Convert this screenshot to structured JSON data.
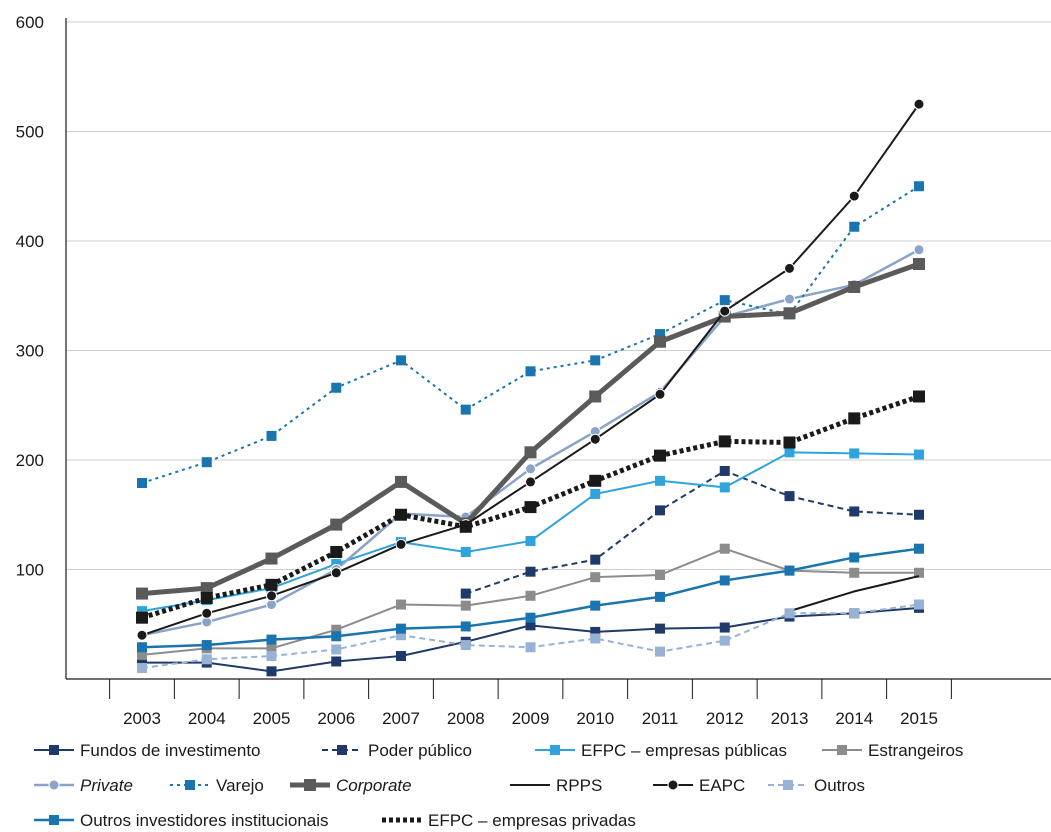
{
  "chart_data": {
    "type": "line",
    "x": [
      "2003",
      "2004",
      "2005",
      "2006",
      "2007",
      "2008",
      "2009",
      "2010",
      "2011",
      "2012",
      "2013",
      "2014",
      "2015"
    ],
    "ylim": [
      0,
      600
    ],
    "yticks": [
      100,
      200,
      300,
      400,
      500,
      600
    ],
    "grid": true,
    "legend_position": "bottom",
    "series": [
      {
        "name": "Fundos de investimento",
        "color": "#1f3a68",
        "line": "solid",
        "marker": "square",
        "width": 2,
        "italic": false,
        "values": [
          15,
          15,
          7,
          16,
          21,
          34,
          49,
          43,
          46,
          47,
          57,
          60,
          65
        ]
      },
      {
        "name": "Poder público",
        "color": "#1f3a68",
        "line": "dashed",
        "marker": "square",
        "width": 2,
        "italic": false,
        "values": [
          null,
          null,
          null,
          null,
          null,
          78,
          98,
          109,
          154,
          190,
          167,
          153,
          150
        ]
      },
      {
        "name": "EFPC  – empresas públicas",
        "color": "#2ea3dc",
        "line": "solid",
        "marker": "square",
        "width": 2,
        "italic": false,
        "values": [
          62,
          72,
          83,
          105,
          125,
          116,
          126,
          169,
          181,
          175,
          207,
          206,
          205
        ]
      },
      {
        "name": "Estrangeiros",
        "color": "#8c8c8c",
        "line": "solid",
        "marker": "square",
        "width": 2,
        "italic": false,
        "values": [
          22,
          28,
          28,
          45,
          68,
          67,
          76,
          93,
          95,
          119,
          99,
          97,
          97
        ]
      },
      {
        "name": "Private",
        "color": "#8aa3c9",
        "line": "solid",
        "marker": "circle",
        "width": 2.5,
        "italic": true,
        "values": [
          40,
          52,
          68,
          100,
          151,
          148,
          192,
          226,
          262,
          331,
          347,
          360,
          392
        ]
      },
      {
        "name": "Varejo",
        "color": "#1a74b0",
        "line": "dotted",
        "marker": "square",
        "width": 2,
        "italic": false,
        "values": [
          179,
          198,
          222,
          266,
          291,
          246,
          281,
          291,
          315,
          346,
          333,
          413,
          450
        ]
      },
      {
        "name": "Corporate",
        "color": "#5a5a5a",
        "line": "solid",
        "marker": "square",
        "width": 5,
        "italic": true,
        "values": [
          78,
          83,
          110,
          141,
          180,
          142,
          207,
          258,
          308,
          331,
          334,
          358,
          379
        ]
      },
      {
        "name": "RPPS",
        "color": "#1a1a1a",
        "line": "solid",
        "marker": "none",
        "width": 2,
        "italic": false,
        "values": [
          null,
          null,
          null,
          null,
          null,
          null,
          null,
          null,
          null,
          null,
          62,
          80,
          94
        ]
      },
      {
        "name": "EAPC",
        "color": "#1a1a1a",
        "line": "solid",
        "marker": "circle",
        "width": 2,
        "italic": false,
        "values": [
          40,
          60,
          76,
          97,
          123,
          141,
          180,
          219,
          260,
          336,
          375,
          441,
          525
        ]
      },
      {
        "name": "Outros",
        "color": "#98b2d6",
        "line": "dashed",
        "marker": "square",
        "width": 2,
        "italic": false,
        "values": [
          10,
          18,
          21,
          27,
          40,
          31,
          29,
          37,
          25,
          35,
          60,
          60,
          68
        ]
      },
      {
        "name": "Outros investidores institucionais",
        "color": "#1a74b0",
        "line": "solid",
        "marker": "square",
        "width": 2.5,
        "italic": false,
        "values": [
          29,
          31,
          36,
          39,
          46,
          48,
          56,
          67,
          75,
          90,
          99,
          111,
          119
        ]
      },
      {
        "name": "EFPC – empresas privadas",
        "color": "#1a1a1a",
        "line": "heavydot",
        "marker": "square",
        "width": 5,
        "italic": false,
        "values": [
          56,
          74,
          86,
          116,
          150,
          139,
          157,
          181,
          204,
          217,
          216,
          238,
          258
        ]
      }
    ]
  }
}
